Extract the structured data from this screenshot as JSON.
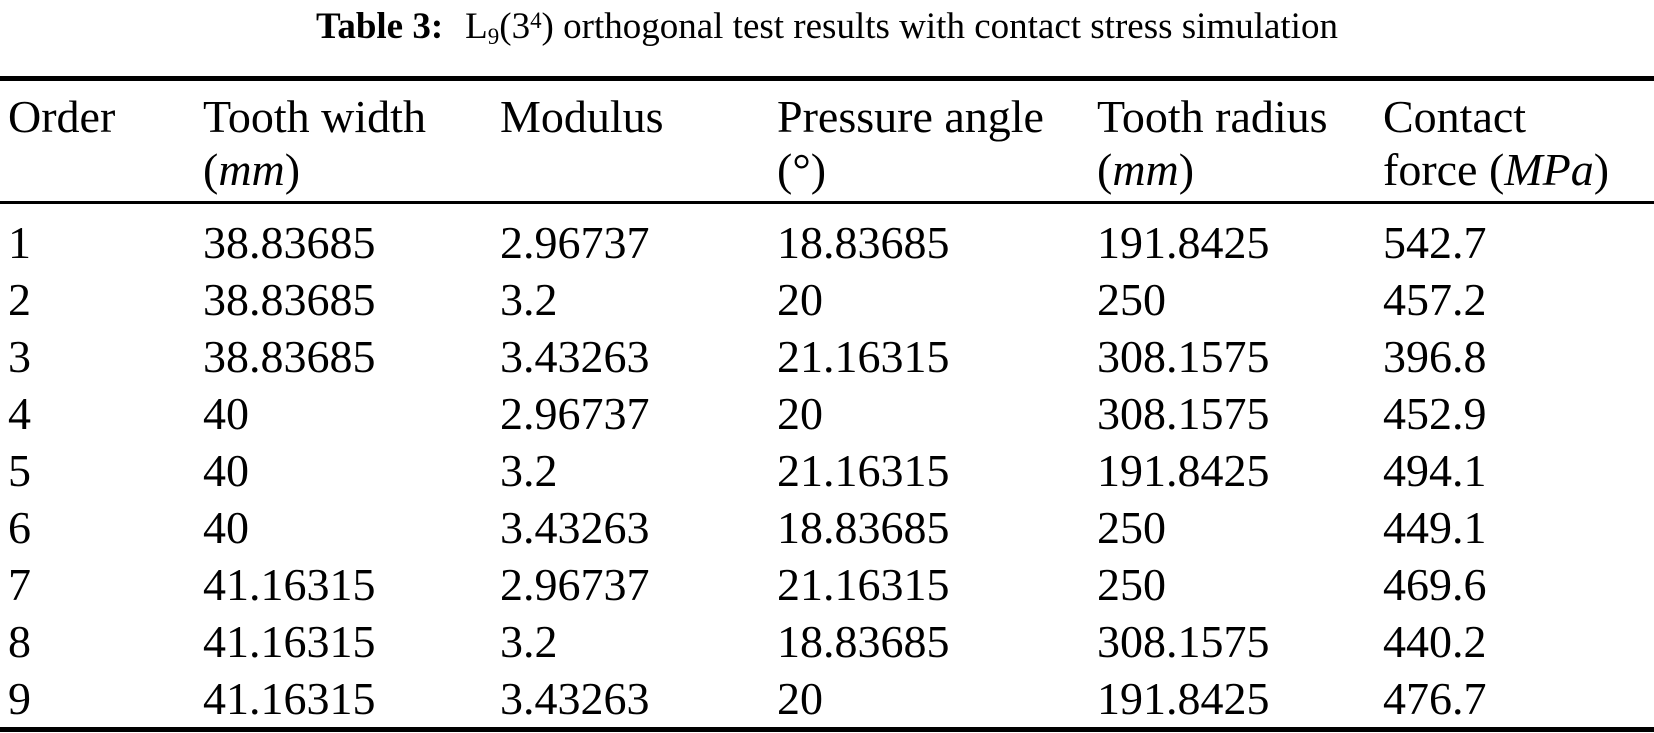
{
  "page": {
    "background": "#ffffff",
    "text_color": "#000000",
    "rule_color": "#000000"
  },
  "caption": {
    "label": "Table 3:",
    "series_letter": "L",
    "series_sub": "9",
    "series_open": "(3",
    "series_sup": "4",
    "series_close": ")",
    "rest": " orthogonal test results with contact stress simulation"
  },
  "table": {
    "columns": [
      {
        "key": "order",
        "line1": "Order",
        "line2_pre": "",
        "unit": "",
        "line2_post": "",
        "unit_italic": false
      },
      {
        "key": "tooth-width",
        "line1": "Tooth width",
        "line2_pre": "(",
        "unit": "mm",
        "line2_post": ")",
        "unit_italic": true
      },
      {
        "key": "modulus",
        "line1": "Modulus",
        "line2_pre": "",
        "unit": "",
        "line2_post": "",
        "unit_italic": false
      },
      {
        "key": "pressure-angle",
        "line1": "Pressure angle",
        "line2_pre": "(",
        "unit": "°",
        "line2_post": ")",
        "unit_italic": false
      },
      {
        "key": "tooth-radius",
        "line1": "Tooth radius",
        "line2_pre": "(",
        "unit": "mm",
        "line2_post": ")",
        "unit_italic": true
      },
      {
        "key": "contact-force",
        "line1": "Contact",
        "line2_pre": "force (",
        "unit": "MPa",
        "line2_post": ")",
        "unit_italic": true
      }
    ],
    "rows": [
      [
        "1",
        "38.83685",
        "2.96737",
        "18.83685",
        "191.8425",
        "542.7"
      ],
      [
        "2",
        "38.83685",
        "3.2",
        "20",
        "250",
        "457.2"
      ],
      [
        "3",
        "38.83685",
        "3.43263",
        "21.16315",
        "308.1575",
        "396.8"
      ],
      [
        "4",
        "40",
        "2.96737",
        "20",
        "308.1575",
        "452.9"
      ],
      [
        "5",
        "40",
        "3.2",
        "21.16315",
        "191.8425",
        "494.1"
      ],
      [
        "6",
        "40",
        "3.43263",
        "18.83685",
        "250",
        "449.1"
      ],
      [
        "7",
        "41.16315",
        "2.96737",
        "21.16315",
        "250",
        "469.6"
      ],
      [
        "8",
        "41.16315",
        "3.2",
        "18.83685",
        "308.1575",
        "440.2"
      ],
      [
        "9",
        "41.16315",
        "3.43263",
        "20",
        "191.8425",
        "476.7"
      ]
    ]
  }
}
